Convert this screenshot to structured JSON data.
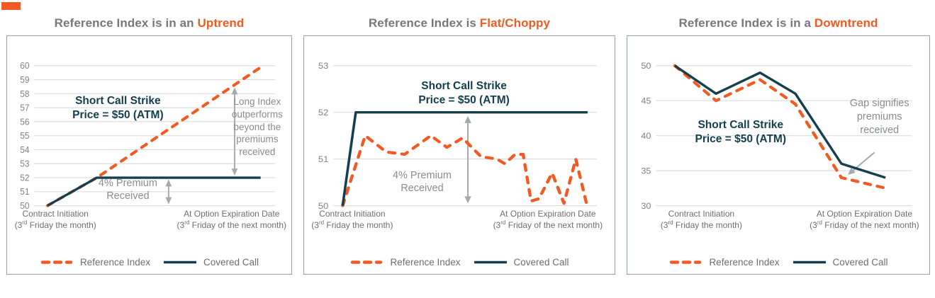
{
  "colors": {
    "orange": "#F15A22",
    "navy": "#14404E",
    "gridline": "#DCDDDE",
    "arrow": "#A7A9AC",
    "tick_text": "#808285",
    "title_text": "#77787B",
    "annotation_gray": "#8A8C8F",
    "axis_label_text": "#6D6E71",
    "legend_text": "#6D6E71",
    "box_border": "#9BA0A3"
  },
  "legend": {
    "reference_label": "Reference Index",
    "covered_label": "Covered Call"
  },
  "xaxis": {
    "left1": "Contract Initiation",
    "left2_pre": "(3",
    "left2_sup": "rd",
    "left2_post": " Friday the month)",
    "right1": "At Option Expiration Date",
    "right2_pre": "(3",
    "right2_sup": "rd",
    "right2_post": " Friday of the next month)"
  },
  "chart_data": [
    {
      "type": "line",
      "title_prefix": "Reference Index is in an ",
      "title_accent": "Uptrend",
      "ylim": [
        50,
        60
      ],
      "yticks": [
        60,
        59,
        58,
        57,
        56,
        55,
        54,
        53,
        52,
        51,
        50
      ],
      "grid": "horizontal",
      "legend_position": "bottom",
      "series": [
        {
          "name": "Reference Index",
          "style": "dashed",
          "color": "#F15A22",
          "points": [
            [
              0.055,
              50
            ],
            [
              0.26,
              52
            ],
            [
              0.95,
              60
            ]
          ]
        },
        {
          "name": "Covered Call",
          "style": "solid",
          "color": "#14404E",
          "points": [
            [
              0.055,
              50
            ],
            [
              0.26,
              52
            ],
            [
              0.94,
              52
            ]
          ]
        }
      ],
      "arrows": [
        {
          "x1f": 0.558,
          "v1": 50.1,
          "x2f": 0.558,
          "v2": 51.88,
          "heads": "both"
        },
        {
          "x1f": 0.832,
          "v1": 52.15,
          "x2f": 0.832,
          "v2": 58.45,
          "heads": "both"
        }
      ],
      "annotations": {
        "strike": [
          "Short Call Strike",
          "Price = $50 (ATM)"
        ],
        "premium": [
          "4% Premium",
          "Received"
        ],
        "long_index": [
          "Long Index",
          "outperforms",
          "beyond the",
          "premiums",
          "received"
        ]
      }
    },
    {
      "type": "line",
      "title_prefix": "Reference Index is ",
      "title_accent": "Flat/Choppy",
      "ylim": [
        50,
        53
      ],
      "yticks": [
        53,
        52,
        51,
        50
      ],
      "grid": "horizontal",
      "legend_position": "bottom",
      "series": [
        {
          "name": "Reference Index",
          "style": "dashed",
          "color": "#F15A22",
          "points": [
            [
              0.034,
              50
            ],
            [
              0.12,
              51.5
            ],
            [
              0.2,
              51.15
            ],
            [
              0.27,
              51.1
            ],
            [
              0.369,
              51.5
            ],
            [
              0.43,
              51.25
            ],
            [
              0.49,
              51.45
            ],
            [
              0.56,
              51.05
            ],
            [
              0.62,
              51.0
            ],
            [
              0.65,
              50.9
            ],
            [
              0.69,
              51.1
            ],
            [
              0.72,
              51.1
            ],
            [
              0.75,
              50.1
            ],
            [
              0.78,
              50.15
            ],
            [
              0.83,
              50.7
            ],
            [
              0.875,
              50.05
            ],
            [
              0.92,
              51.0
            ],
            [
              0.965,
              49.95
            ]
          ]
        },
        {
          "name": "Covered Call",
          "style": "solid",
          "color": "#14404E",
          "points": [
            [
              0.034,
              50
            ],
            [
              0.084,
              52
            ],
            [
              0.965,
              52
            ]
          ]
        }
      ],
      "arrows": [
        {
          "x1f": 0.51,
          "v1": 50.05,
          "x2f": 0.51,
          "v2": 51.92,
          "heads": "both"
        }
      ],
      "annotations": {
        "strike": [
          "Short Call Strike",
          "Price = $50 (ATM)"
        ],
        "premium": [
          "4% Premium",
          "Received"
        ]
      }
    },
    {
      "type": "line",
      "title_prefix": "Reference Index is in a ",
      "title_accent": "Downtrend",
      "ylim": [
        30,
        50
      ],
      "yticks": [
        50,
        45,
        40,
        35,
        30
      ],
      "grid": "horizontal",
      "legend_position": "bottom",
      "series": [
        {
          "name": "Reference Index",
          "style": "dashed",
          "color": "#F15A22",
          "points": [
            [
              0.073,
              50
            ],
            [
              0.234,
              45
            ],
            [
              0.406,
              48
            ],
            [
              0.544,
              44.5
            ],
            [
              0.724,
              34
            ],
            [
              0.896,
              32.5
            ]
          ]
        },
        {
          "name": "Covered Call",
          "style": "solid",
          "color": "#14404E",
          "points": [
            [
              0.073,
              50
            ],
            [
              0.234,
              46
            ],
            [
              0.406,
              49
            ],
            [
              0.544,
              46
            ],
            [
              0.724,
              36
            ],
            [
              0.896,
              34
            ]
          ]
        }
      ],
      "arrows": [
        {
          "x1f": 0.853,
          "v1": 37.6,
          "x2f": 0.749,
          "v2": 34.4,
          "heads": "end"
        }
      ],
      "annotations": {
        "strike": [
          "Short Call Strike",
          "Price = $50 (ATM)"
        ],
        "gap": [
          "Gap signifies",
          "premiums",
          "received"
        ]
      }
    }
  ]
}
